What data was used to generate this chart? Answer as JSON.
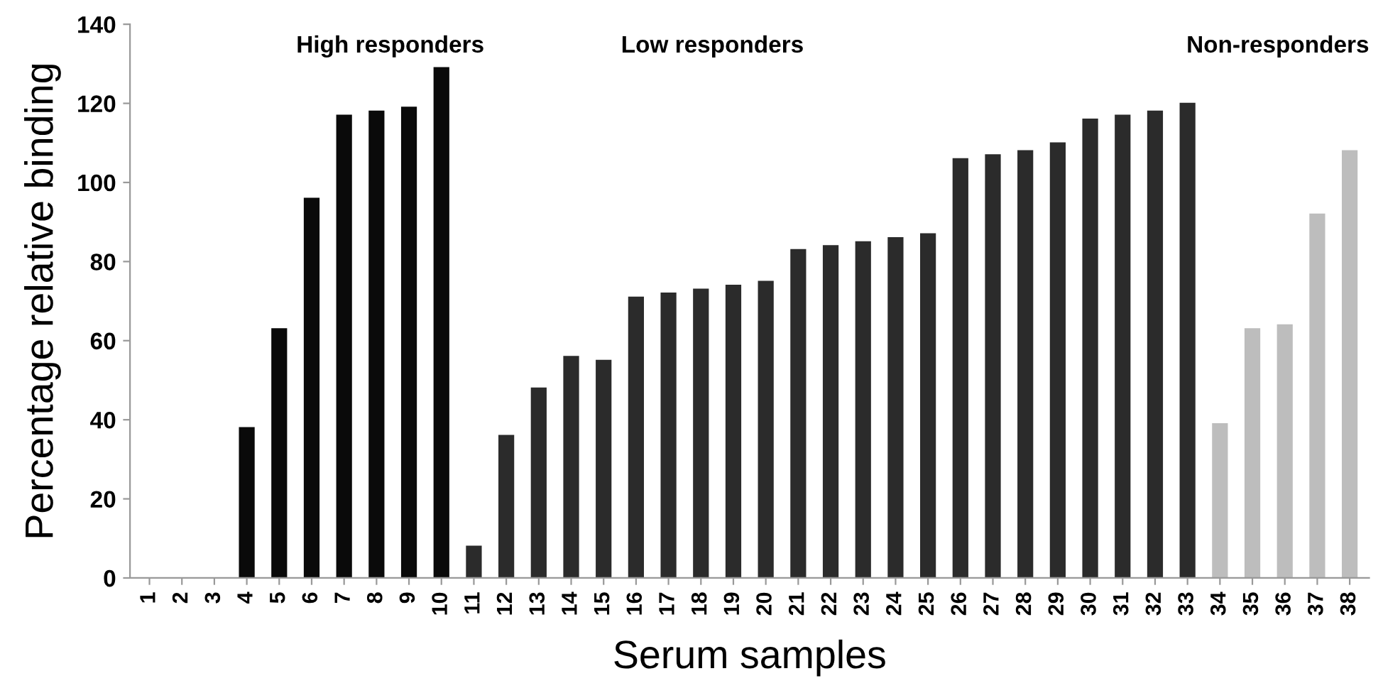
{
  "chart_data": {
    "type": "bar",
    "xlabel": "Serum samples",
    "ylabel": "Percentage relative binding",
    "categories": [
      "1",
      "2",
      "3",
      "4",
      "5",
      "6",
      "7",
      "8",
      "9",
      "10",
      "11",
      "12",
      "13",
      "14",
      "15",
      "16",
      "17",
      "18",
      "19",
      "20",
      "21",
      "22",
      "23",
      "24",
      "25",
      "26",
      "27",
      "28",
      "29",
      "30",
      "31",
      "32",
      "33",
      "34",
      "35",
      "36",
      "37",
      "38"
    ],
    "values": [
      0,
      0,
      0,
      38,
      63,
      96,
      117,
      118,
      119,
      129,
      8,
      36,
      48,
      56,
      55,
      71,
      72,
      73,
      74,
      75,
      83,
      84,
      85,
      86,
      87,
      106,
      107,
      108,
      110,
      116,
      117,
      118,
      120,
      39,
      63,
      64,
      92,
      108
    ],
    "colors": [
      "#0a0a0a",
      "#0a0a0a",
      "#0a0a0a",
      "#0a0a0a",
      "#0a0a0a",
      "#0a0a0a",
      "#0a0a0a",
      "#0a0a0a",
      "#0a0a0a",
      "#0a0a0a",
      "#2b2b2b",
      "#2b2b2b",
      "#2b2b2b",
      "#2b2b2b",
      "#2b2b2b",
      "#2b2b2b",
      "#2b2b2b",
      "#2b2b2b",
      "#2b2b2b",
      "#2b2b2b",
      "#2b2b2b",
      "#2b2b2b",
      "#2b2b2b",
      "#2b2b2b",
      "#2b2b2b",
      "#2b2b2b",
      "#2b2b2b",
      "#2b2b2b",
      "#2b2b2b",
      "#2b2b2b",
      "#2b2b2b",
      "#2b2b2b",
      "#2b2b2b",
      "#bdbdbd",
      "#bdbdbd",
      "#bdbdbd",
      "#bdbdbd",
      "#bdbdbd"
    ],
    "ylim": [
      0,
      140
    ],
    "yticks": [
      0,
      20,
      40,
      60,
      80,
      100,
      120,
      140
    ],
    "annotations": [
      "High responders",
      "Low responders",
      "Non-responders"
    ],
    "grid": false,
    "legend": false
  }
}
